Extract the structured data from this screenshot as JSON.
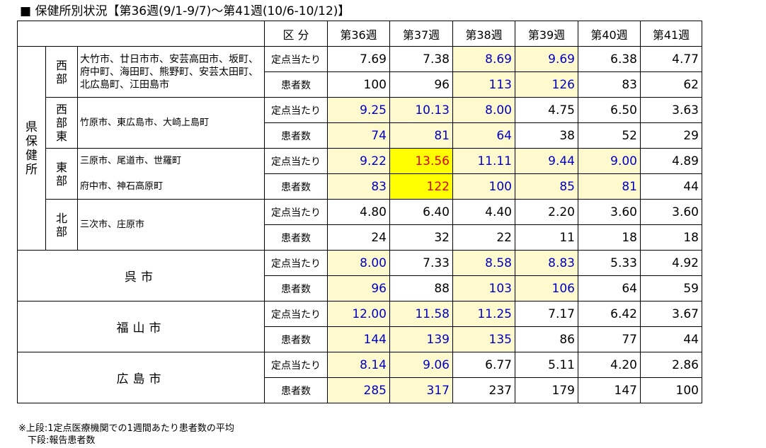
{
  "title": "■ 保健所別状況【第36週(9/1-9/7)～第41週(10/6-10/12)】",
  "header": {
    "category": "区 分",
    "weeks": [
      "第36週",
      "第37週",
      "第38週",
      "第39週",
      "第40週",
      "第41週"
    ]
  },
  "row_labels": {
    "per_site": "定点当たり",
    "patients": "患者数"
  },
  "pref_label": "県保健所",
  "groups": [
    {
      "name": "西部",
      "districts": [
        "大竹市、廿日市市、安芸高田市、坂町、府中町、海田町、熊野町、安芸太田町、北広島町、江田島市"
      ],
      "per_site": [
        "7.69",
        "7.38",
        "8.69",
        "9.69",
        "6.38",
        "4.77"
      ],
      "patients": [
        "100",
        "96",
        "113",
        "126",
        "83",
        "62"
      ]
    },
    {
      "name": "西部東",
      "districts": [
        "竹原市、東広島市、大崎上島町"
      ],
      "per_site": [
        "9.25",
        "10.13",
        "8.00",
        "4.75",
        "6.50",
        "3.63"
      ],
      "patients": [
        "74",
        "81",
        "64",
        "38",
        "52",
        "29"
      ]
    },
    {
      "name": "東部",
      "districts": [
        "三原市、尾道市、世羅町",
        "府中市、神石高原町"
      ],
      "per_site": [
        "9.22",
        "13.56",
        "11.11",
        "9.44",
        "9.00",
        "4.89"
      ],
      "patients": [
        "83",
        "122",
        "100",
        "85",
        "81",
        "44"
      ]
    },
    {
      "name": "北部",
      "districts": [
        "三次市、庄原市"
      ],
      "per_site": [
        "4.80",
        "6.40",
        "4.40",
        "2.20",
        "3.60",
        "3.60"
      ],
      "patients": [
        "24",
        "32",
        "22",
        "11",
        "18",
        "18"
      ]
    }
  ],
  "cities": [
    {
      "name": "呉市",
      "per_site": [
        "8.00",
        "7.33",
        "8.58",
        "8.83",
        "5.33",
        "4.92"
      ],
      "patients": [
        "96",
        "88",
        "103",
        "106",
        "64",
        "59"
      ]
    },
    {
      "name": "福山市",
      "per_site": [
        "12.00",
        "11.58",
        "11.25",
        "7.17",
        "6.42",
        "3.67"
      ],
      "patients": [
        "144",
        "139",
        "135",
        "86",
        "77",
        "44"
      ]
    },
    {
      "name": "広島市",
      "per_site": [
        "8.14",
        "9.06",
        "6.77",
        "5.11",
        "4.20",
        "2.86"
      ],
      "patients": [
        "285",
        "317",
        "237",
        "179",
        "147",
        "100"
      ]
    }
  ],
  "highlight_colors": {
    "light": "#fffacd",
    "strong": "#ffff00",
    "blue_text": "#0000c8",
    "red_text": "#e00000"
  },
  "footnote": {
    "line1": "※上段:1定点医療機関での1週間あたり患者数の平均",
    "line2": "　下段:報告患者数"
  }
}
